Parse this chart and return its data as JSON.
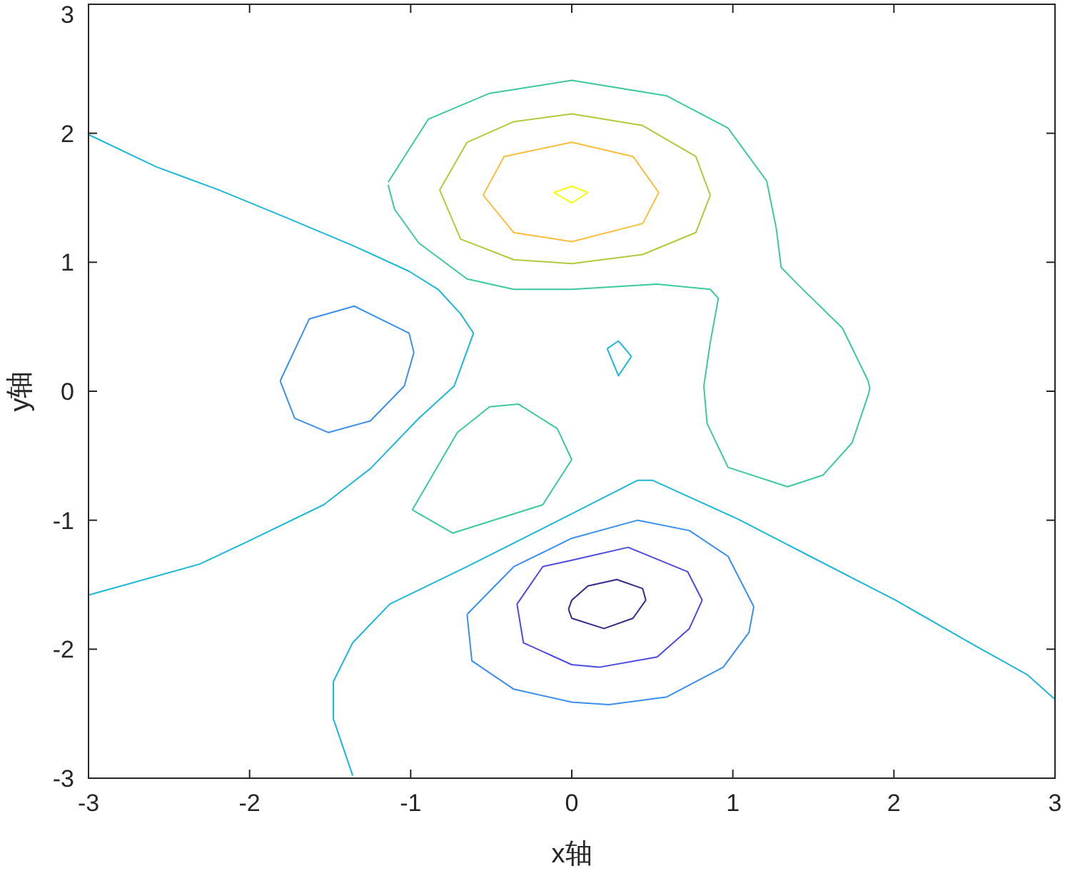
{
  "chart_data": {
    "type": "line",
    "xlabel": "x轴",
    "ylabel": "y轴",
    "xlim": [
      -3,
      3
    ],
    "ylim": [
      -3,
      3
    ],
    "xticks": [
      -3,
      -2,
      -1,
      0,
      1,
      2,
      3
    ],
    "yticks": [
      -3,
      -2,
      -1,
      0,
      1,
      2,
      3
    ],
    "grid": false,
    "marker": "none",
    "line_style": "solid",
    "series": [
      {
        "color": "#1cb8d8",
        "x": [
          -3,
          -2.58,
          -2.19,
          -1.78,
          -1.36,
          -1.01,
          -0.83,
          -0.69,
          -0.61,
          -0.73,
          -0.95,
          -1.25,
          -1.54,
          -2.02,
          -2.31,
          -3
        ],
        "values": [
          1.99,
          1.74,
          1.56,
          1.35,
          1.13,
          0.93,
          0.79,
          0.6,
          0.45,
          0.04,
          -0.21,
          -0.6,
          -0.88,
          -1.17,
          -1.34,
          -1.58
        ]
      },
      {
        "color": "#1cb8d8",
        "x": [
          -1.36,
          -1.48,
          -1.48,
          -1.36,
          -1.13,
          -0.65,
          0,
          0.41,
          0.5,
          1.03,
          1.48,
          2.01,
          2.5,
          2.83,
          3
        ],
        "values": [
          -2.98,
          -2.54,
          -2.25,
          -1.95,
          -1.65,
          -1.36,
          -0.95,
          -0.69,
          -0.69,
          -0.99,
          -1.28,
          -1.62,
          -1.97,
          -2.2,
          -2.39
        ]
      },
      {
        "color": "#3a8ff0",
        "x": [
          -1.81,
          -1.63,
          -1.35,
          -1.01,
          -0.98
        ],
        "values": [
          0.08,
          0.56,
          0.66,
          0.45,
          0.3
        ]
      },
      {
        "color": "#3a8ff0",
        "x": [
          -1.81,
          -1.72,
          -1.51,
          -1.25,
          -1.04,
          -0.98
        ],
        "values": [
          0.08,
          -0.21,
          -0.32,
          -0.23,
          0.04,
          0.3
        ]
      },
      {
        "color": "#3cc8a0",
        "x": [
          -0.99,
          -0.71,
          -0.51,
          -0.33,
          -0.09,
          0
        ],
        "values": [
          -0.92,
          -0.32,
          -0.12,
          -0.1,
          -0.29,
          -0.53
        ]
      },
      {
        "color": "#3cc8a0",
        "x": [
          -0.99,
          -0.74,
          -0.18,
          0
        ],
        "values": [
          -0.92,
          -1.1,
          -0.88,
          -0.53
        ]
      },
      {
        "color": "#1cb8d8",
        "x": [
          0.22,
          0.29,
          0.37
        ],
        "values": [
          0.33,
          0.39,
          0.27
        ]
      },
      {
        "color": "#1cb8d8",
        "x": [
          0.22,
          0.29,
          0.37
        ],
        "values": [
          0.33,
          0.12,
          0.27
        ]
      },
      {
        "color": "#3cc8a0",
        "x": [
          -1.14,
          -0.89,
          -0.51,
          0,
          0.59,
          0.97,
          1.21,
          1.27,
          1.3,
          1.41,
          1.68,
          1.84,
          1.85,
          1.84,
          1.74,
          1.56,
          1.34,
          0.97,
          0.84,
          0.82,
          0.86,
          0.91,
          0.86,
          0.53,
          0,
          -0.36,
          -0.65,
          -0.95,
          -1.1,
          -1.14
        ],
        "values": [
          1.62,
          2.11,
          2.31,
          2.41,
          2.29,
          2.04,
          1.63,
          1.26,
          0.96,
          0.82,
          0.49,
          0.08,
          0.02,
          -0.03,
          -0.4,
          -0.65,
          -0.74,
          -0.59,
          -0.25,
          0.04,
          0.38,
          0.72,
          0.79,
          0.83,
          0.79,
          0.79,
          0.87,
          1.15,
          1.41,
          1.6
        ]
      },
      {
        "color": "#b4c83c",
        "x": [
          -0.82,
          -0.65,
          -0.36,
          0,
          0.44,
          0.77,
          0.86
        ],
        "values": [
          1.56,
          1.93,
          2.09,
          2.15,
          2.06,
          1.82,
          1.52
        ]
      },
      {
        "color": "#b4c83c",
        "x": [
          -0.82,
          -0.69,
          -0.36,
          0,
          0.44,
          0.77,
          0.86
        ],
        "values": [
          1.56,
          1.18,
          1.02,
          0.99,
          1.06,
          1.23,
          1.52
        ]
      },
      {
        "color": "#fbbe3c",
        "x": [
          -0.55,
          -0.42,
          0,
          0.38,
          0.54
        ],
        "values": [
          1.52,
          1.82,
          1.93,
          1.82,
          1.54
        ]
      },
      {
        "color": "#fbbe3c",
        "x": [
          -0.55,
          -0.36,
          0,
          0.44,
          0.54
        ],
        "values": [
          1.52,
          1.23,
          1.16,
          1.3,
          1.54
        ]
      },
      {
        "color": "#f9fb0e",
        "x": [
          -0.11,
          0,
          0.1
        ],
        "values": [
          1.54,
          1.59,
          1.54
        ]
      },
      {
        "color": "#f9fb0e",
        "x": [
          -0.11,
          0,
          0.1
        ],
        "values": [
          1.54,
          1.46,
          1.54
        ]
      },
      {
        "color": "#3a8ff0",
        "x": [
          -0.65,
          -0.36,
          0,
          0.41,
          0.73,
          0.97,
          1.13
        ],
        "values": [
          -1.73,
          -1.36,
          -1.14,
          -1.0,
          -1.08,
          -1.28,
          -1.67
        ]
      },
      {
        "color": "#3a8ff0",
        "x": [
          -0.65,
          -0.62,
          -0.36,
          0,
          0.23,
          0.59,
          0.94,
          1.1,
          1.13
        ],
        "values": [
          -1.73,
          -2.09,
          -2.31,
          -2.41,
          -2.43,
          -2.37,
          -2.14,
          -1.87,
          -1.67
        ]
      },
      {
        "color": "#4a4ae0",
        "x": [
          -0.34,
          -0.18,
          0,
          0.35,
          0.72,
          0.81
        ],
        "values": [
          -1.65,
          -1.36,
          -1.31,
          -1.21,
          -1.4,
          -1.62
        ]
      },
      {
        "color": "#4a4ae0",
        "x": [
          -0.34,
          -0.3,
          0,
          0.17,
          0.53,
          0.73,
          0.81
        ],
        "values": [
          -1.65,
          -1.95,
          -2.12,
          -2.14,
          -2.06,
          -1.84,
          -1.62
        ]
      },
      {
        "color": "#352a87",
        "x": [
          -0.02,
          0,
          0.1,
          0.28,
          0.44,
          0.46
        ],
        "values": [
          -1.69,
          -1.62,
          -1.51,
          -1.46,
          -1.53,
          -1.62
        ]
      },
      {
        "color": "#352a87",
        "x": [
          -0.02,
          0,
          0.2,
          0.38,
          0.46
        ],
        "values": [
          -1.69,
          -1.76,
          -1.84,
          -1.76,
          -1.62
        ]
      }
    ]
  }
}
